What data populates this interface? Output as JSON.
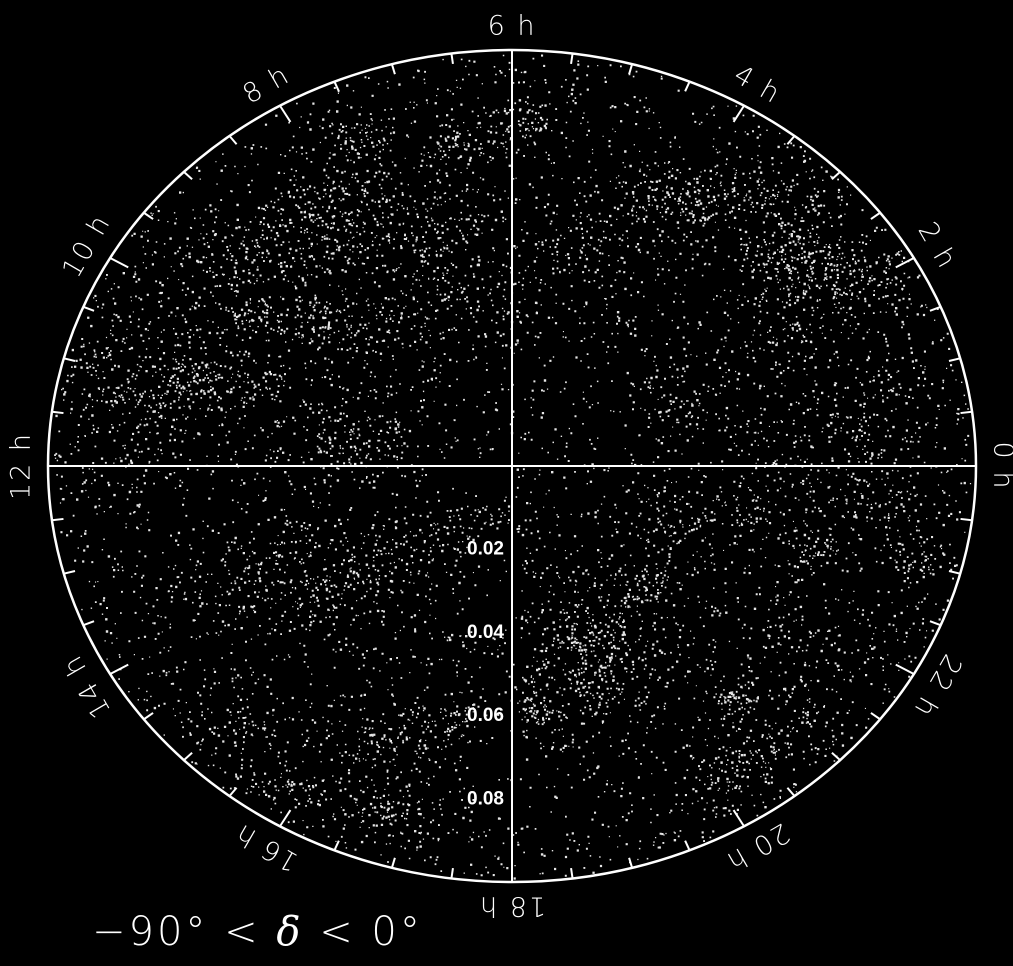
{
  "chart_data": {
    "type": "scatter",
    "projection": "polar",
    "angle_coordinate": "right ascension",
    "radial_coordinate": "redshift",
    "radial_range": [
      0,
      0.1
    ],
    "angle_labels": [
      "0 h",
      "2 h",
      "4 h",
      "6 h",
      "8 h",
      "10 h",
      "12 h",
      "14 h",
      "16 h",
      "18 h",
      "20 h",
      "22 h"
    ],
    "radial_ticks": [
      0.02,
      0.04,
      0.06,
      0.08
    ],
    "radial_tick_labels": [
      "0.02",
      "0.04",
      "0.06",
      "0.08"
    ],
    "axis_lines": [
      "0 h - 12 h",
      "6 h - 18 h"
    ],
    "caption_parts": [
      "−90°",
      "<",
      "δ",
      "<",
      "0°"
    ],
    "colors": {
      "background": "#000000",
      "points": "#ffffff",
      "axes": "#ffffff"
    }
  }
}
